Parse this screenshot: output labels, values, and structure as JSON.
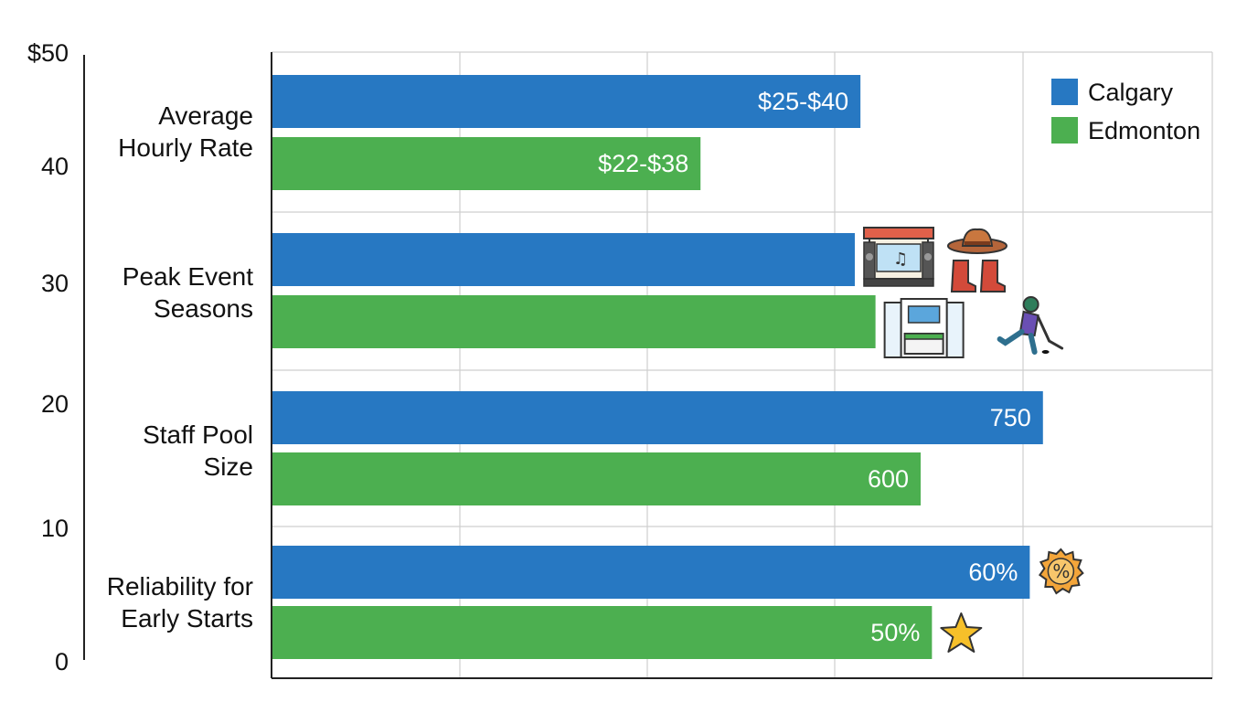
{
  "chart_data": {
    "type": "bar",
    "orientation": "horizontal",
    "categories": [
      [
        "Average",
        "Hourly Rate"
      ],
      [
        "Peak Event",
        "Seasons"
      ],
      [
        "Staff Pool",
        "Size"
      ],
      [
        "Reliability for",
        "Early Starts"
      ]
    ],
    "left_axis_ticks": [
      "$50",
      "40",
      "30",
      "20",
      "10",
      "0"
    ],
    "series": [
      {
        "name": "Calgary",
        "color": "#2778c2",
        "values": [
          31.3,
          31.0,
          41.0,
          40.3
        ],
        "labels": [
          "$25-$40",
          "",
          "750",
          "60%"
        ],
        "icons": [
          "",
          "concert-stage-icon cowboy-hat-boots-icon",
          "",
          "percent-badge-icon"
        ]
      },
      {
        "name": "Edmonton",
        "color": "#4caf50",
        "values": [
          22.8,
          32.1,
          34.5,
          35.1
        ],
        "labels": [
          "$22-$38",
          "",
          "600",
          "50%"
        ],
        "icons": [
          "",
          "trade-show-booth-icon hockey-player-icon",
          "",
          "star-icon"
        ]
      }
    ],
    "xlim": [
      0,
      50
    ],
    "grid": true,
    "legend": "top-right"
  }
}
